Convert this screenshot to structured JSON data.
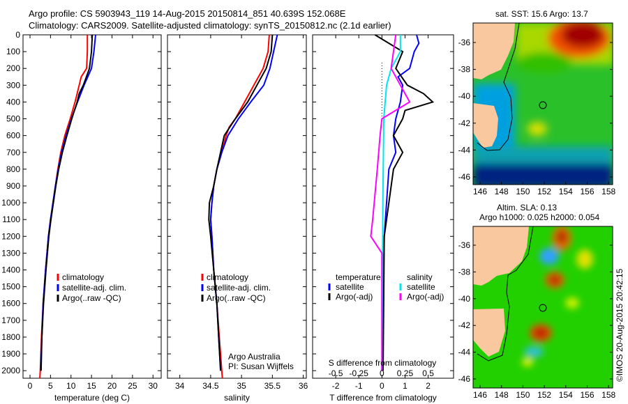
{
  "title": {
    "line1": "Argo profile: CS 5903943_119 14-Aug-2015 20150814_851 40.639S 152.068E",
    "line2": "Climatology: CARS2009. Satellite-adjusted climatology: synTS_20150812.nc (2.1d earlier)"
  },
  "colors": {
    "climatology": "#ff0000",
    "satellite": "#0000ff",
    "argo": "#000000",
    "sal_satellite": "#00e5ee",
    "sal_argo": "#ff00ff",
    "land": "#f9c89e"
  },
  "chart_data": [
    {
      "type": "line",
      "id": "temperature",
      "xlabel": "temperature (deg C)",
      "ylabel": "",
      "xlim": [
        -1.7,
        32
      ],
      "ylim": [
        2045,
        0
      ],
      "xticks": [
        0,
        5,
        10,
        15,
        20,
        25,
        30
      ],
      "yticks": [
        0,
        100,
        200,
        300,
        400,
        500,
        600,
        700,
        800,
        900,
        1000,
        1100,
        1200,
        1300,
        1400,
        1500,
        1600,
        1700,
        1800,
        1900,
        2000
      ],
      "legend": [
        "climatology",
        "satellite-adj. clim.",
        "Argo(..raw -QC)"
      ],
      "series": [
        {
          "name": "climatology",
          "color": "#ff0000",
          "points": [
            [
              14,
              0
            ],
            [
              14,
              100
            ],
            [
              13.8,
              200
            ],
            [
              12.5,
              250
            ],
            [
              12,
              300
            ],
            [
              11,
              400
            ],
            [
              9.8,
              500
            ],
            [
              8.5,
              600
            ],
            [
              7.5,
              700
            ],
            [
              6.8,
              800
            ],
            [
              6.2,
              900
            ],
            [
              5.6,
              1000
            ],
            [
              5,
              1100
            ],
            [
              4.5,
              1200
            ],
            [
              3.8,
              1400
            ],
            [
              3.2,
              1600
            ],
            [
              2.8,
              1800
            ],
            [
              2.5,
              2000
            ],
            [
              2.4,
              2045
            ]
          ]
        },
        {
          "name": "satellite-adj. clim.",
          "color": "#0000ff",
          "points": [
            [
              16,
              0
            ],
            [
              15.6,
              100
            ],
            [
              15,
              200
            ],
            [
              13.2,
              300
            ],
            [
              11.6,
              400
            ],
            [
              10.1,
              500
            ],
            [
              8.8,
              600
            ],
            [
              7.7,
              700
            ],
            [
              6.9,
              800
            ],
            [
              6.2,
              900
            ],
            [
              5.6,
              1000
            ],
            [
              5,
              1100
            ],
            [
              4.5,
              1200
            ],
            [
              3.8,
              1400
            ],
            [
              3.2,
              1600
            ],
            [
              2.9,
              1800
            ],
            [
              2.6,
              2000
            ]
          ]
        },
        {
          "name": "Argo(..raw -QC)",
          "color": "#000000",
          "points": [
            [
              15.2,
              0
            ],
            [
              15,
              100
            ],
            [
              14.5,
              200
            ],
            [
              13,
              300
            ],
            [
              12,
              350
            ],
            [
              11.5,
              400
            ],
            [
              10.2,
              500
            ],
            [
              9,
              600
            ],
            [
              7.9,
              700
            ],
            [
              7,
              800
            ],
            [
              6.3,
              900
            ],
            [
              5.7,
              1000
            ],
            [
              5.1,
              1100
            ],
            [
              4.6,
              1200
            ],
            [
              3.9,
              1400
            ],
            [
              3.3,
              1600
            ],
            [
              2.9,
              1800
            ],
            [
              2.7,
              2000
            ]
          ]
        }
      ]
    },
    {
      "type": "line",
      "id": "salinity",
      "xlabel": "salinity",
      "ylabel": "",
      "xlim": [
        33.8,
        36.05
      ],
      "ylim": [
        2045,
        0
      ],
      "xticks": [
        34,
        34.5,
        35,
        35.5,
        36
      ],
      "xticklabels": [
        "34",
        "34.5",
        "35",
        "35.5",
        "36"
      ],
      "legend": [
        "climatology",
        "satellite-adj. clim.",
        "Argo(..raw -QC)"
      ],
      "annotation": [
        "Argo Australia",
        "PI: Susan Wijffels"
      ],
      "series": [
        {
          "name": "climatology",
          "color": "#ff0000",
          "points": [
            [
              35.45,
              0
            ],
            [
              35.43,
              100
            ],
            [
              35.35,
              200
            ],
            [
              35.2,
              300
            ],
            [
              35.05,
              400
            ],
            [
              34.9,
              500
            ],
            [
              34.8,
              550
            ],
            [
              34.75,
              600
            ],
            [
              34.68,
              700
            ],
            [
              34.6,
              800
            ],
            [
              34.55,
              900
            ],
            [
              34.52,
              1000
            ],
            [
              34.5,
              1100
            ],
            [
              34.52,
              1200
            ],
            [
              34.55,
              1400
            ],
            [
              34.6,
              1600
            ],
            [
              34.64,
              1800
            ],
            [
              34.68,
              2000
            ],
            [
              34.69,
              2045
            ]
          ]
        },
        {
          "name": "satellite-adj. clim.",
          "color": "#0000ff",
          "points": [
            [
              35.58,
              0
            ],
            [
              35.52,
              100
            ],
            [
              35.46,
              200
            ],
            [
              35.36,
              300
            ],
            [
              35.15,
              400
            ],
            [
              34.95,
              500
            ],
            [
              34.78,
              600
            ],
            [
              34.68,
              700
            ],
            [
              34.6,
              800
            ],
            [
              34.55,
              900
            ],
            [
              34.52,
              1000
            ],
            [
              34.5,
              1100
            ],
            [
              34.52,
              1200
            ],
            [
              34.55,
              1400
            ],
            [
              34.6,
              1600
            ],
            [
              34.63,
              1800
            ],
            [
              34.66,
              2000
            ]
          ]
        },
        {
          "name": "Argo(..raw -QC)",
          "color": "#000000",
          "points": [
            [
              35.5,
              0
            ],
            [
              35.48,
              100
            ],
            [
              35.4,
              200
            ],
            [
              35.25,
              300
            ],
            [
              35.1,
              400
            ],
            [
              34.9,
              500
            ],
            [
              34.72,
              600
            ],
            [
              34.66,
              700
            ],
            [
              34.6,
              800
            ],
            [
              34.55,
              900
            ],
            [
              34.48,
              1000
            ],
            [
              34.47,
              1100
            ],
            [
              34.5,
              1200
            ],
            [
              34.55,
              1400
            ],
            [
              34.6,
              1600
            ],
            [
              34.63,
              1800
            ],
            [
              34.66,
              2000
            ]
          ]
        }
      ]
    },
    {
      "type": "line",
      "id": "difference",
      "xlabel": "T difference from climatology",
      "x2label": "S difference from climatology",
      "xlim": [
        -3,
        3.1
      ],
      "ylim": [
        2045,
        0
      ],
      "xticks": [
        -2,
        -1,
        0,
        1,
        2
      ],
      "xticklabels": [
        "-2",
        "-1",
        "0",
        "1",
        "2"
      ],
      "x2ticks": [
        -0.5,
        -0.25,
        0,
        0.25,
        0.5
      ],
      "x2ticklabels": [
        "-0.5",
        "-0.25",
        "0",
        "0.25",
        "0.5"
      ],
      "legend": {
        "temperature_title": "temperature",
        "salinity_title": "salinity",
        "items": [
          "satellite",
          "Argo(-adj)",
          "satellite",
          "Argo(-adj)"
        ]
      },
      "series": [
        {
          "name": "T satellite",
          "color": "#0000ff",
          "unit": "T",
          "points": [
            [
              1.5,
              0
            ],
            [
              1.6,
              50
            ],
            [
              1.4,
              100
            ],
            [
              1.2,
              200
            ],
            [
              0.7,
              250
            ],
            [
              0.9,
              300
            ],
            [
              0.8,
              400
            ],
            [
              0.6,
              500
            ],
            [
              0.5,
              600
            ],
            [
              0.6,
              700
            ],
            [
              0.3,
              800
            ],
            [
              0.2,
              1000
            ],
            [
              0.1,
              1200
            ],
            [
              0.05,
              1500
            ],
            [
              0,
              2000
            ]
          ]
        },
        {
          "name": "T Argo(-adj)",
          "color": "#000000",
          "unit": "T",
          "points": [
            [
              -0.3,
              0
            ],
            [
              0.3,
              50
            ],
            [
              0.9,
              100
            ],
            [
              0.6,
              200
            ],
            [
              1.1,
              300
            ],
            [
              1.8,
              350
            ],
            [
              2.2,
              400
            ],
            [
              1.0,
              450
            ],
            [
              0.9,
              500
            ],
            [
              0.5,
              600
            ],
            [
              0.9,
              700
            ],
            [
              0.5,
              800
            ],
            [
              0.3,
              1000
            ],
            [
              0.1,
              1200
            ],
            [
              0.05,
              2000
            ]
          ]
        },
        {
          "name": "S satellite",
          "color": "#00e5ee",
          "unit": "S",
          "points": [
            [
              0.2,
              0
            ],
            [
              0.2,
              100
            ],
            [
              0.1,
              200
            ],
            [
              0.05,
              300
            ],
            [
              0.02,
              500
            ],
            [
              0.01,
              1000
            ],
            [
              0,
              2000
            ]
          ]
        },
        {
          "name": "S Argo(-adj)",
          "color": "#ff00ff",
          "unit": "S",
          "points": [
            [
              0.15,
              0
            ],
            [
              0.1,
              200
            ],
            [
              0.2,
              300
            ],
            [
              0.3,
              400
            ],
            [
              0,
              500
            ],
            [
              -0.02,
              600
            ],
            [
              -0.05,
              800
            ],
            [
              -0.1,
              1100
            ],
            [
              -0.12,
              1200
            ],
            [
              0,
              1300
            ],
            [
              0,
              2000
            ]
          ]
        }
      ]
    }
  ],
  "map_sst": {
    "title": "sat. SST: 15.6  Argo: 13.7",
    "lon_ticks": [
      "146",
      "148",
      "150",
      "152",
      "154",
      "156",
      "158"
    ],
    "lat_ticks": [
      "-36",
      "-38",
      "-40",
      "-42",
      "-44",
      "-46"
    ]
  },
  "map_sla": {
    "title1": "Altim. SLA: 0.13",
    "title2": "Argo h1000: 0.025 h2000: 0.054",
    "lon_ticks": [
      "146",
      "148",
      "150",
      "152",
      "154",
      "156",
      "158"
    ],
    "lat_ticks": [
      "-36",
      "-38",
      "-40",
      "-42",
      "-44",
      "-46"
    ]
  },
  "credit": "©IMOS 20-Aug-2015 20:42:15"
}
